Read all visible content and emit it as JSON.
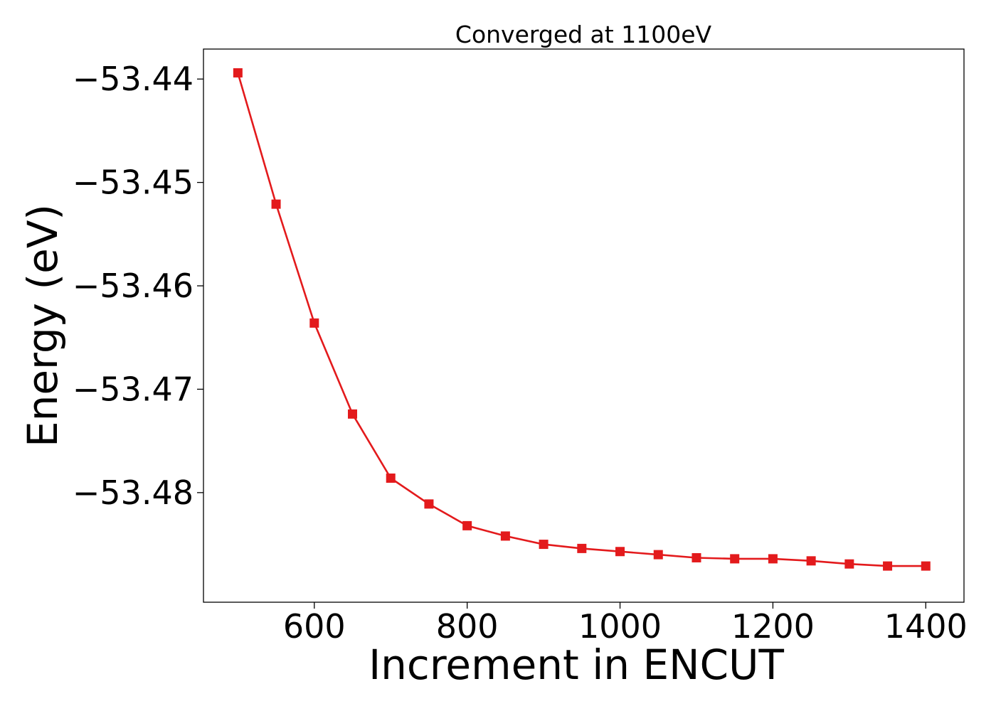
{
  "chart_data": {
    "type": "line",
    "title": "Converged at 1100eV",
    "xlabel": "Increment in ENCUT",
    "ylabel": "Energy (eV)",
    "xlim": [
      455,
      1450
    ],
    "ylim": [
      -53.4906,
      -53.4371
    ],
    "xticks": [
      600,
      800,
      1000,
      1200,
      1400
    ],
    "xtick_labels": [
      "600",
      "800",
      "1000",
      "1200",
      "1400"
    ],
    "yticks": [
      -53.44,
      -53.45,
      -53.46,
      -53.47,
      -53.48
    ],
    "ytick_labels": [
      "−53.44",
      "−53.45",
      "−53.46",
      "−53.47",
      "−53.48"
    ],
    "grid": false,
    "legend": "none",
    "series": [
      {
        "marker": "square",
        "color": "#e31a1c",
        "x": [
          500,
          550,
          600,
          650,
          700,
          750,
          800,
          850,
          900,
          950,
          1000,
          1050,
          1100,
          1150,
          1200,
          1250,
          1300,
          1350,
          1400
        ],
        "y": [
          -53.4394,
          -53.4521,
          -53.4636,
          -53.4724,
          -53.4786,
          -53.4811,
          -53.4832,
          -53.4842,
          -53.485,
          -53.4854,
          -53.4857,
          -53.486,
          -53.4863,
          -53.4864,
          -53.4864,
          -53.4866,
          -53.4869,
          -53.4871,
          -53.4871
        ]
      }
    ]
  }
}
